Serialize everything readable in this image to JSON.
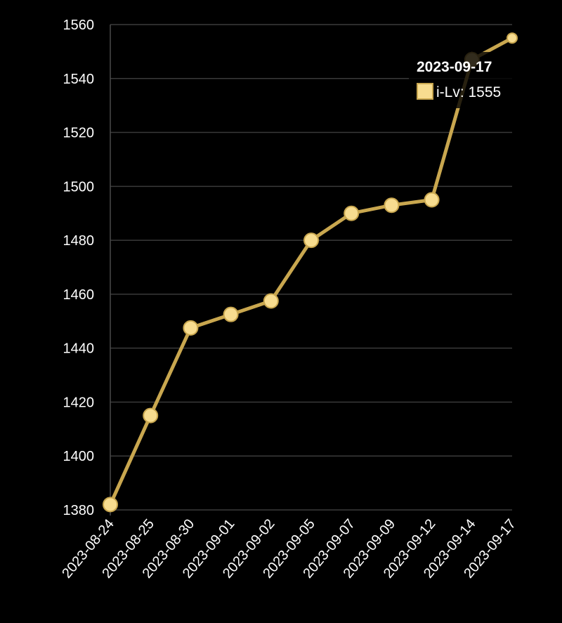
{
  "chart_data": {
    "type": "line",
    "title": "",
    "xlabel": "",
    "ylabel": "",
    "categories": [
      "2023-08-24",
      "2023-08-25",
      "2023-08-30",
      "2023-09-01",
      "2023-09-02",
      "2023-09-05",
      "2023-09-07",
      "2023-09-09",
      "2023-09-12",
      "2023-09-14",
      "2023-09-17"
    ],
    "series": [
      {
        "name": "i-Lv",
        "values": [
          1382,
          1415,
          1447.5,
          1452.5,
          1457.5,
          1480,
          1490,
          1493,
          1495,
          1547,
          1555
        ]
      }
    ],
    "ylim": [
      1380,
      1560
    ],
    "yticks": [
      1380,
      1400,
      1420,
      1440,
      1460,
      1480,
      1500,
      1520,
      1540,
      1560
    ],
    "grid": true,
    "legend": "none",
    "colors": {
      "line": "#c9a74f",
      "point_fill": "#f7dc8f",
      "point_stroke": "#c9a74f",
      "background": "#000000",
      "grid": "#3a3a3a",
      "text": "#ffffff"
    }
  },
  "tooltip": {
    "title": "2023-09-17",
    "series_label": "i-Lv",
    "value": "1555",
    "text": "i-Lv: 1555"
  }
}
